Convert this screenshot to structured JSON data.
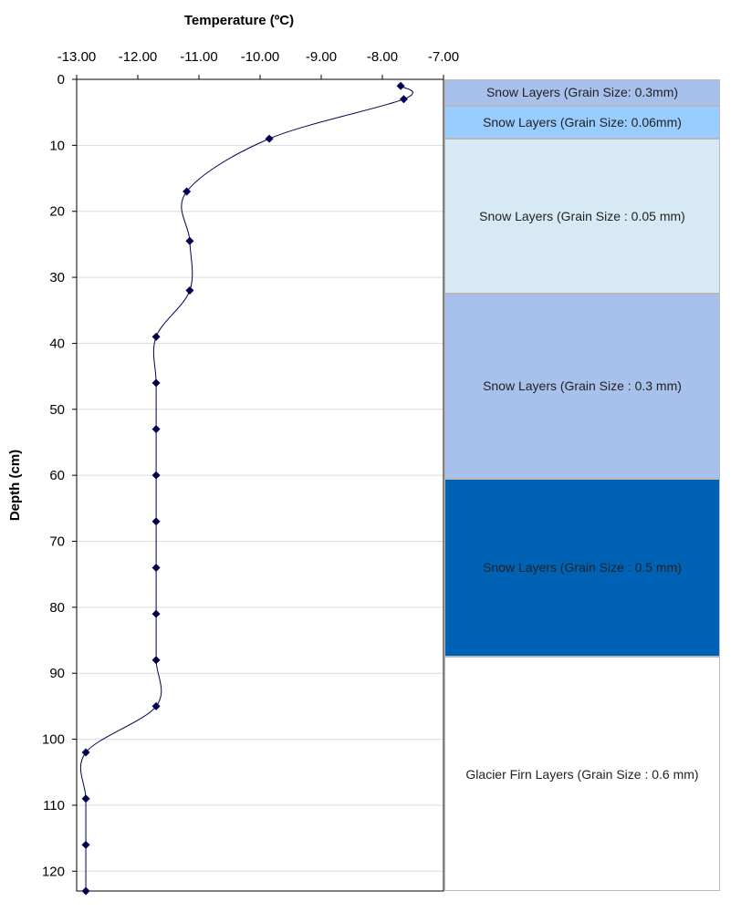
{
  "chart_data": {
    "type": "line",
    "title": "",
    "xlabel": "Temperature (ºC)",
    "ylabel": "Depth (cm)",
    "xlim": [
      -13.0,
      -7.0
    ],
    "ylim": [
      0,
      123
    ],
    "x_ticks": [
      "-13.00",
      "-12.00",
      "-11.00",
      "-10.00",
      "-9.00",
      "-8.00",
      "-7.00"
    ],
    "y_ticks": [
      "0",
      "10",
      "20",
      "30",
      "40",
      "50",
      "60",
      "70",
      "80",
      "90",
      "100",
      "110",
      "120"
    ],
    "x_axis_position": "top",
    "y_axis_inverted": true,
    "grid": "horizontal",
    "series": [
      {
        "color": "#000050",
        "marker": "diamond",
        "points": [
          {
            "temp": -7.7,
            "depth": 1
          },
          {
            "temp": -7.65,
            "depth": 3
          },
          {
            "temp": -9.85,
            "depth": 9
          },
          {
            "temp": -11.2,
            "depth": 17
          },
          {
            "temp": -11.15,
            "depth": 24.5
          },
          {
            "temp": -11.15,
            "depth": 32
          },
          {
            "temp": -11.7,
            "depth": 39
          },
          {
            "temp": -11.7,
            "depth": 46
          },
          {
            "temp": -11.7,
            "depth": 53
          },
          {
            "temp": -11.7,
            "depth": 60
          },
          {
            "temp": -11.7,
            "depth": 67
          },
          {
            "temp": -11.7,
            "depth": 74
          },
          {
            "temp": -11.7,
            "depth": 81
          },
          {
            "temp": -11.7,
            "depth": 88
          },
          {
            "temp": -11.7,
            "depth": 95
          },
          {
            "temp": -12.85,
            "depth": 102
          },
          {
            "temp": -12.85,
            "depth": 109
          },
          {
            "temp": -12.85,
            "depth": 116
          },
          {
            "temp": -12.85,
            "depth": 123
          }
        ]
      }
    ],
    "layers": [
      {
        "label": "Snow Layers (Grain Size: 0.3mm)",
        "top": 0,
        "bottom": 4,
        "color": "#a7c1ec"
      },
      {
        "label": "Snow Layers (Grain Size: 0.06mm)",
        "top": 4,
        "bottom": 9,
        "color": "#99ccff"
      },
      {
        "label": "Snow Layers (Grain Size : 0.05 mm)",
        "top": 9,
        "bottom": 32.5,
        "color": "#d6e9f4"
      },
      {
        "label": "Snow Layers (Grain Size : 0.3 mm)",
        "top": 32.5,
        "bottom": 60.5,
        "color": "#a7c1ec"
      },
      {
        "label": "Snow Layers (Grain Size : 0.5 mm)",
        "top": 60.5,
        "bottom": 87.5,
        "color": "#0062b4"
      },
      {
        "label": "Glacier Firn Layers (Grain Size : 0.6 mm)",
        "top": 87.5,
        "bottom": 123,
        "color": "#ffffff"
      }
    ]
  }
}
